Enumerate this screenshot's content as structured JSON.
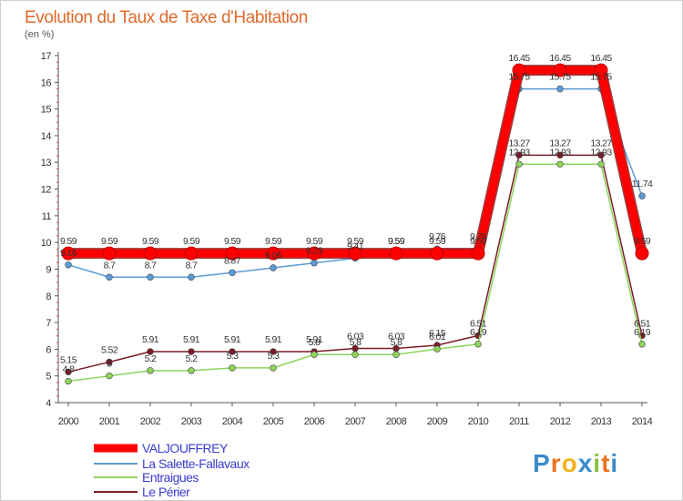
{
  "chart_data": {
    "type": "line",
    "title": "Evolution du Taux de Taxe d'Habitation",
    "subtitle": "(en %)",
    "xlabel": "",
    "ylabel": "",
    "x": [
      "2000",
      "2001",
      "2002",
      "2003",
      "2004",
      "2005",
      "2006",
      "2007",
      "2008",
      "2009",
      "2010",
      "2011",
      "2012",
      "2013",
      "2014"
    ],
    "ylim": [
      4,
      17
    ],
    "yticks": [
      "4",
      "5",
      "6",
      "7",
      "8",
      "9",
      "10",
      "11",
      "12",
      "13",
      "14",
      "15",
      "16",
      "17"
    ],
    "grid": false,
    "legend_position": "bottom-left",
    "series": [
      {
        "name": "VALJOUFFREY",
        "color": "#ff0000",
        "values": [
          9.59,
          9.59,
          9.59,
          9.59,
          9.59,
          9.59,
          9.59,
          9.59,
          9.59,
          9.59,
          9.59,
          16.45,
          16.45,
          16.45,
          9.59
        ],
        "labels": [
          "9.59",
          "9.59",
          "9.59",
          "9.59",
          "9.59",
          "9.59",
          "9.59",
          "9.59",
          "9.59",
          "9.59",
          "9.59",
          "16.45",
          "16.45",
          "16.45",
          "9.59"
        ]
      },
      {
        "name": "La Salette-Fallavaux",
        "color": "#5b9bd5",
        "values": [
          9.16,
          8.7,
          8.7,
          8.7,
          8.87,
          9.05,
          9.23,
          9.41,
          9.59,
          9.76,
          9.76,
          15.75,
          15.75,
          15.75,
          11.74
        ],
        "labels": [
          "9.16",
          "8.7",
          "8.7",
          "8.7",
          "8.87",
          "9.05",
          "9.23",
          "9.41",
          "9.59",
          "9.76",
          "9.76",
          "15.75",
          "15.75",
          "15.75",
          "11.74"
        ]
      },
      {
        "name": "Entraigues",
        "color": "#8ed45c",
        "values": [
          4.8,
          5.0,
          5.2,
          5.2,
          5.3,
          5.3,
          5.8,
          5.8,
          5.8,
          6.01,
          6.19,
          12.93,
          12.93,
          12.93,
          6.19
        ],
        "labels": [
          "4.8",
          "5",
          "5.2",
          "5.2",
          "5.3",
          "5.3",
          "5.8",
          "5.8",
          "5.8",
          "6.01",
          "6.19",
          "12.93",
          "12.93",
          "12.93",
          "6.19"
        ]
      },
      {
        "name": "Le Périer",
        "color": "#7a1c28",
        "values": [
          5.15,
          5.52,
          5.91,
          5.91,
          5.91,
          5.91,
          5.91,
          6.03,
          6.03,
          6.15,
          6.51,
          13.27,
          13.27,
          13.27,
          6.51
        ],
        "labels": [
          "5.15",
          "5.52",
          "5.91",
          "5.91",
          "5.91",
          "5.91",
          "5.91",
          "6.03",
          "6.03",
          "6.15",
          "6.51",
          "13.27",
          "13.27",
          "13.27",
          "6.51"
        ]
      }
    ]
  },
  "logo": {
    "letters": [
      "P",
      "r",
      "o",
      "x",
      "i",
      "t",
      "i"
    ],
    "colors": [
      "#3a8ac9",
      "#e8731f",
      "#f2b21b",
      "#3a8ac9",
      "#86c23e",
      "#e8731f",
      "#3a8ac9"
    ]
  }
}
